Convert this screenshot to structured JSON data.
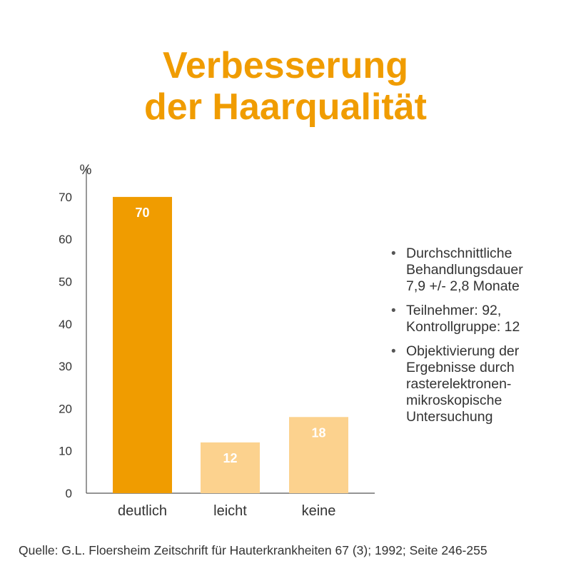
{
  "title": {
    "line1": "Verbesserung",
    "line2": "der Haarqualität"
  },
  "colors": {
    "title": "#f09c00",
    "highlight_bar": "#f09c00",
    "light_bar": "#fcd28e",
    "bar_label": "#ffffff",
    "axis": "#555555",
    "text": "#333333"
  },
  "chart_data": {
    "type": "bar",
    "ylabel": "%",
    "xlabel": "",
    "ylim": [
      0,
      75
    ],
    "yticks": [
      0,
      10,
      20,
      30,
      40,
      50,
      60,
      70
    ],
    "categories": [
      "deutlich",
      "leicht",
      "keine"
    ],
    "values": [
      70,
      12,
      18
    ],
    "data_labels": [
      "70",
      "12",
      "18"
    ],
    "bar_colors": [
      "#f09c00",
      "#fcd28e",
      "#fcd28e"
    ],
    "grid": false,
    "legend": "none"
  },
  "notes": [
    "Durchschnittliche\nBehandlungsdauer\n7,9 +/- 2,8 Monate",
    "Teilnehmer: 92,\nKontrollgruppe: 12",
    "Objektivierung der\nErgebnisse durch\nrasterelektronen-\nmikroskopische\nUntersuchung"
  ],
  "bullet": "•",
  "source": "Quelle: G.L. Floersheim Zeitschrift für Hauterkrankheiten 67 (3); 1992; Seite 246-255"
}
